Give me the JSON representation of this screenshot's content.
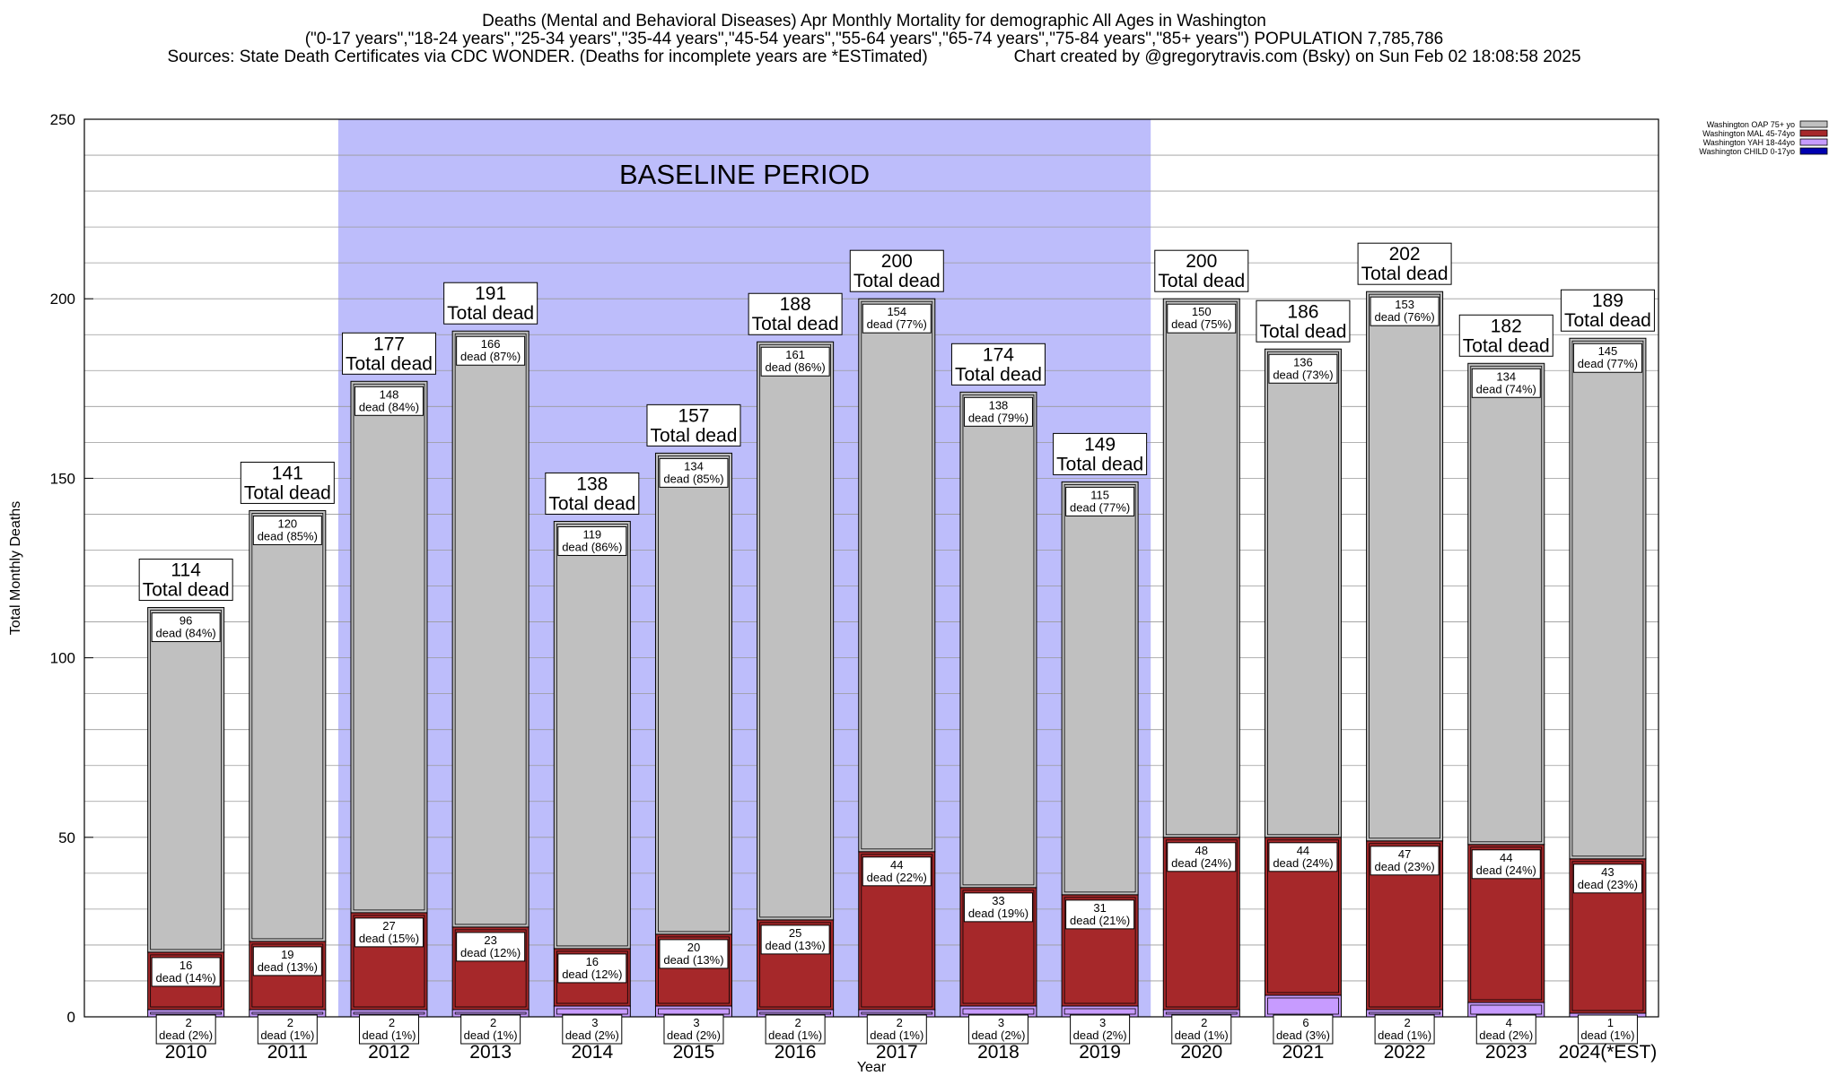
{
  "header": {
    "title": "Deaths (Mental and Behavioral Diseases) Apr Monthly Mortality for demographic All Ages in Washington",
    "subtitle": "(\"0-17 years\",\"18-24 years\",\"25-34 years\",\"35-44 years\",\"45-54 years\",\"55-64 years\",\"65-74 years\",\"75-84 years\",\"85+ years\") POPULATION 7,785,786",
    "sources": "Sources: State Death Certificates via CDC WONDER. (Deaths for incomplete years are *ESTimated)",
    "credit": "Chart created by @gregorytravis.com (Bsky) on Sun Feb 02 18:08:58 2025"
  },
  "chart_data": {
    "type": "bar",
    "stacked": true,
    "xlabel": "Year",
    "ylabel": "Total Monthly Deaths",
    "ylim": [
      0,
      250
    ],
    "yticks": [
      0,
      50,
      100,
      150,
      200,
      250
    ],
    "grid": true,
    "legend_position": "top-right",
    "categories": [
      "2010",
      "2011",
      "2012",
      "2013",
      "2014",
      "2015",
      "2016",
      "2017",
      "2018",
      "2019",
      "2020",
      "2021",
      "2022",
      "2023",
      "2024(*EST)"
    ],
    "totals": [
      114,
      141,
      177,
      191,
      138,
      157,
      188,
      200,
      174,
      149,
      200,
      186,
      202,
      182,
      189
    ],
    "total_label": "Total dead",
    "dead_word": "dead",
    "baseline": {
      "label": "BASELINE PERIOD",
      "from": "2012",
      "to": "2019",
      "color": "#bdbdfb"
    },
    "series": [
      {
        "name": "Washington CHILD 0-17yo",
        "color": "#0000b0",
        "values": [
          0,
          0,
          0,
          0,
          0,
          0,
          0,
          0,
          0,
          0,
          0,
          0,
          0,
          0,
          0
        ],
        "pct": [
          "",
          "",
          "",
          "",
          "",
          "",
          "",
          "",
          "",
          "",
          "",
          "",
          "",
          "",
          ""
        ]
      },
      {
        "name": "Washington YAH 18-44yo",
        "color": "#c79bff",
        "values": [
          2,
          2,
          2,
          2,
          3,
          3,
          2,
          2,
          3,
          3,
          2,
          6,
          2,
          4,
          1
        ],
        "pct": [
          "(2%)",
          "(1%)",
          "(1%)",
          "(1%)",
          "(2%)",
          "(2%)",
          "(1%)",
          "(1%)",
          "(2%)",
          "(2%)",
          "(1%)",
          "(3%)",
          "(1%)",
          "(2%)",
          "(1%)"
        ]
      },
      {
        "name": "Washington MAL 45-74yo",
        "color": "#a6282a",
        "values": [
          16,
          19,
          27,
          23,
          16,
          20,
          25,
          44,
          33,
          31,
          48,
          44,
          47,
          44,
          43
        ],
        "pct": [
          "(14%)",
          "(13%)",
          "(15%)",
          "(12%)",
          "(12%)",
          "(13%)",
          "(13%)",
          "(22%)",
          "(19%)",
          "(21%)",
          "(24%)",
          "(24%)",
          "(23%)",
          "(24%)",
          "(23%)"
        ]
      },
      {
        "name": "Washington OAP 75+ yo",
        "color": "#c0c0c0",
        "values": [
          96,
          120,
          148,
          166,
          119,
          134,
          161,
          154,
          138,
          115,
          150,
          136,
          153,
          134,
          145
        ],
        "pct": [
          "(84%)",
          "(85%)",
          "(84%)",
          "(87%)",
          "(86%)",
          "(85%)",
          "(86%)",
          "(77%)",
          "(79%)",
          "(77%)",
          "(75%)",
          "(73%)",
          "(76%)",
          "(74%)",
          "(77%)"
        ]
      }
    ]
  }
}
